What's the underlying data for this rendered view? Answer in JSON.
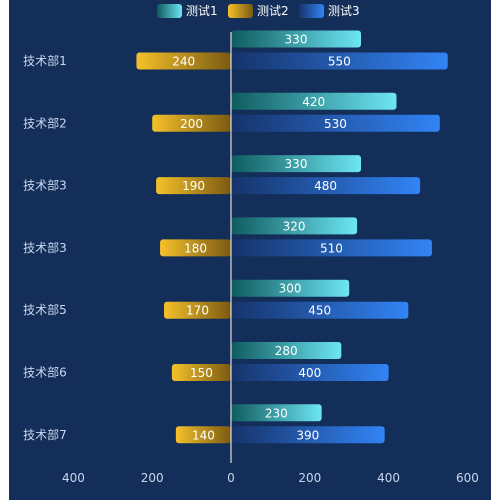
{
  "chart_data": {
    "type": "bar",
    "orientation": "horizontal",
    "layout": "butterfly",
    "categories": [
      "技术部1",
      "技术部2",
      "技术部3",
      "技术部3",
      "技术部5",
      "技术部6",
      "技术部7"
    ],
    "series": [
      {
        "name": "测试1",
        "values": [
          330,
          420,
          330,
          320,
          300,
          280,
          230
        ],
        "side": "right",
        "color_from": "#0f5b5e",
        "color_to": "#6de6f4"
      },
      {
        "name": "测试2",
        "values": [
          240,
          200,
          190,
          180,
          170,
          150,
          140
        ],
        "side": "left",
        "color_from": "#f5c12a",
        "color_to": "#7a5a12"
      },
      {
        "name": "测试3",
        "values": [
          550,
          530,
          480,
          510,
          450,
          400,
          390
        ],
        "side": "right",
        "color_from": "#16336a",
        "color_to": "#3284f5"
      }
    ],
    "x_ticks": [
      {
        "value": -400,
        "label": "400"
      },
      {
        "value": -200,
        "label": "200"
      },
      {
        "value": 0,
        "label": "0"
      },
      {
        "value": 200,
        "label": "200"
      },
      {
        "value": 400,
        "label": "400"
      },
      {
        "value": 600,
        "label": "600"
      }
    ],
    "xlim": [
      -400,
      600
    ],
    "legend_position": "top-center",
    "grid": false,
    "colors": {
      "background": "#132e58",
      "axis": "#ffffff",
      "text": "#c9d8f0"
    }
  }
}
